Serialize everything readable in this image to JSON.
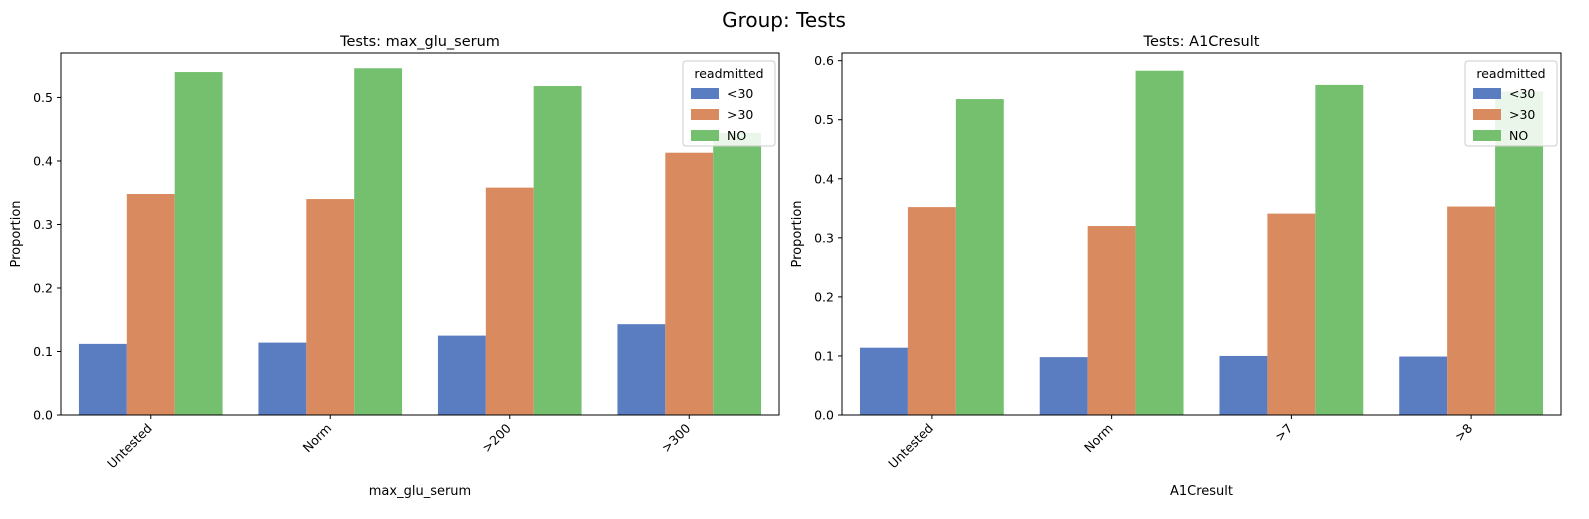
{
  "suptitle": "Group: Tests",
  "colors": {
    "<30": "#5a7dc1",
    ">30": "#d98a5e",
    "NO": "#74c06f",
    "axis": "#000000"
  },
  "chart_data": [
    {
      "type": "bar",
      "title": "Tests: max_glu_serum",
      "xlabel": "max_glu_serum",
      "ylabel": "Proportion",
      "ylim": [
        0,
        0.57
      ],
      "yticks": [
        0.0,
        0.1,
        0.2,
        0.3,
        0.4,
        0.5
      ],
      "ytick_labels": [
        "0.0",
        "0.1",
        "0.2",
        "0.3",
        "0.4",
        "0.5"
      ],
      "categories": [
        "Untested",
        "Norm",
        ">200",
        ">300"
      ],
      "legend": {
        "title": "readmitted",
        "placement": "top-right"
      },
      "series": [
        {
          "name": "<30",
          "values": [
            0.112,
            0.114,
            0.125,
            0.143
          ]
        },
        {
          "name": ">30",
          "values": [
            0.348,
            0.34,
            0.358,
            0.413
          ]
        },
        {
          "name": "NO",
          "values": [
            0.54,
            0.546,
            0.518,
            0.444
          ]
        }
      ]
    },
    {
      "type": "bar",
      "title": "Tests: A1Cresult",
      "xlabel": "A1Cresult",
      "ylabel": "Proportion",
      "ylim": [
        0,
        0.613
      ],
      "yticks": [
        0.0,
        0.1,
        0.2,
        0.3,
        0.4,
        0.5,
        0.6
      ],
      "ytick_labels": [
        "0.0",
        "0.1",
        "0.2",
        "0.3",
        "0.4",
        "0.5",
        "0.6"
      ],
      "categories": [
        "Untested",
        "Norm",
        ">7",
        ">8"
      ],
      "legend": {
        "title": "readmitted",
        "placement": "top-right"
      },
      "series": [
        {
          "name": "<30",
          "values": [
            0.114,
            0.098,
            0.1,
            0.099
          ]
        },
        {
          "name": ">30",
          "values": [
            0.352,
            0.32,
            0.341,
            0.353
          ]
        },
        {
          "name": "NO",
          "values": [
            0.535,
            0.583,
            0.559,
            0.548
          ]
        }
      ]
    }
  ]
}
